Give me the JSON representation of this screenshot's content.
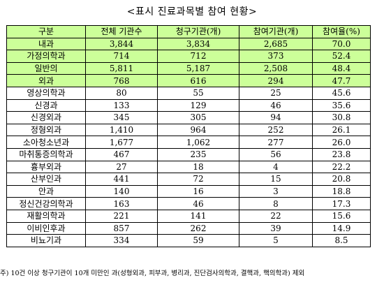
{
  "title": "<표시 진료과목별 참여 현황>",
  "table": {
    "headers": [
      "구분",
      "전체 기관수",
      "청구기관(개)",
      "참여기관(개)",
      "참여율(%)"
    ],
    "rows": [
      {
        "name": "내과",
        "total": "3,844",
        "claim": "3,834",
        "part": "2,685",
        "rate": "70.0",
        "highlight": true
      },
      {
        "name": "가정의학과",
        "total": "714",
        "claim": "712",
        "part": "373",
        "rate": "52.4",
        "highlight": true
      },
      {
        "name": "일반의",
        "total": "5,811",
        "claim": "5,187",
        "part": "2,508",
        "rate": "48.4",
        "highlight": true
      },
      {
        "name": "외과",
        "total": "768",
        "claim": "616",
        "part": "294",
        "rate": "47.7",
        "highlight": true
      },
      {
        "name": "영상의학과",
        "total": "80",
        "claim": "55",
        "part": "25",
        "rate": "45.6",
        "highlight": false
      },
      {
        "name": "신경과",
        "total": "133",
        "claim": "129",
        "part": "46",
        "rate": "35.6",
        "highlight": false
      },
      {
        "name": "신경외과",
        "total": "345",
        "claim": "305",
        "part": "94",
        "rate": "30.8",
        "highlight": false
      },
      {
        "name": "정형외과",
        "total": "1,410",
        "claim": "964",
        "part": "252",
        "rate": "26.1",
        "highlight": false
      },
      {
        "name": "소아청소년과",
        "total": "1,677",
        "claim": "1,062",
        "part": "277",
        "rate": "26.0",
        "highlight": false
      },
      {
        "name": "마취통증의학과",
        "total": "467",
        "claim": "235",
        "part": "56",
        "rate": "23.8",
        "highlight": false
      },
      {
        "name": "흉부외과",
        "total": "27",
        "claim": "18",
        "part": "4",
        "rate": "22.2",
        "highlight": false
      },
      {
        "name": "산부인과",
        "total": "441",
        "claim": "72",
        "part": "15",
        "rate": "20.8",
        "highlight": false
      },
      {
        "name": "안과",
        "total": "140",
        "claim": "16",
        "part": "3",
        "rate": "18.8",
        "highlight": false
      },
      {
        "name": "정신건강의학과",
        "total": "163",
        "claim": "46",
        "part": "8",
        "rate": "17.3",
        "highlight": false
      },
      {
        "name": "재활의학과",
        "total": "221",
        "claim": "141",
        "part": "22",
        "rate": "15.6",
        "highlight": false
      },
      {
        "name": "이비인후과",
        "total": "857",
        "claim": "262",
        "part": "39",
        "rate": "14.9",
        "highlight": false
      },
      {
        "name": "비뇨기과",
        "total": "334",
        "claim": "59",
        "part": "5",
        "rate": "8.5",
        "highlight": false
      }
    ]
  },
  "footnote": "주) 10건 이상 청구기관이 10개 미만인 과(성형외과, 피부과, 병리과, 진단검사의학과, 결핵과, 핵의학과) 제외",
  "colors": {
    "header_bg": "#ccff99",
    "highlight_bg": "#ccff99"
  }
}
